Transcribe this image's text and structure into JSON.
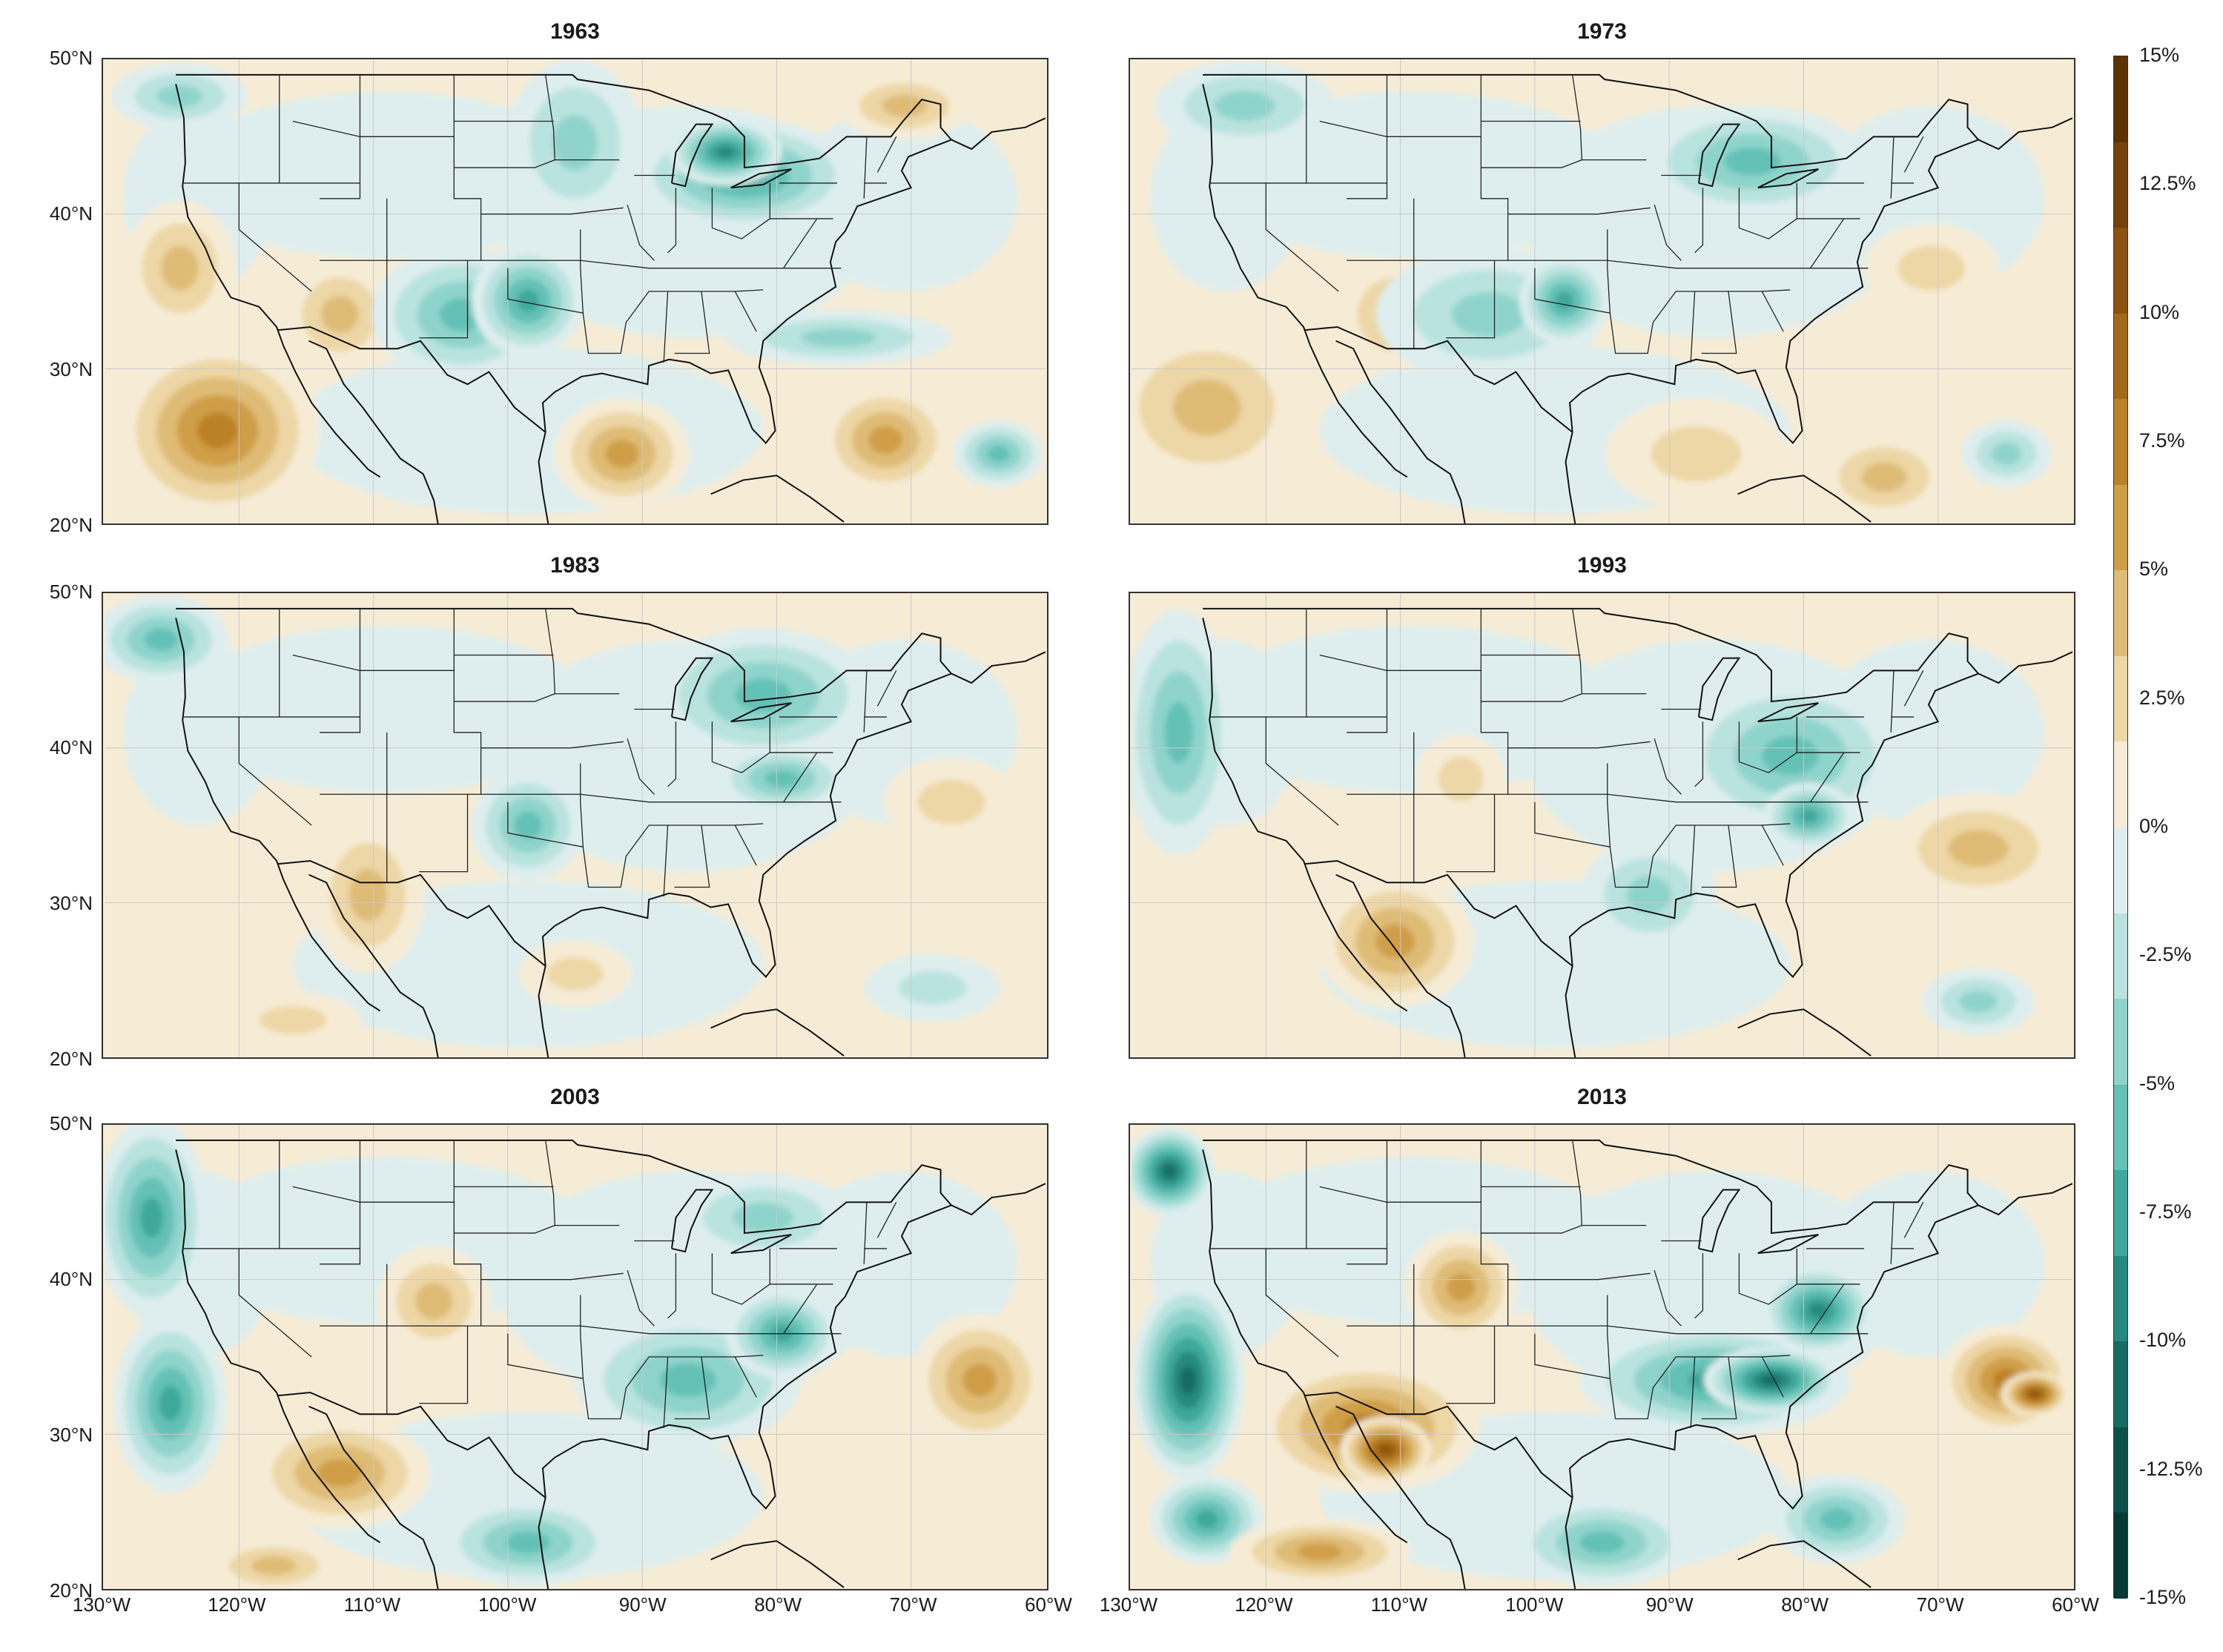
{
  "panels": [
    {
      "title": "1963",
      "palette": "mixed-1963"
    },
    {
      "title": "1973",
      "palette": "mixed-1973"
    },
    {
      "title": "1983",
      "palette": "mixed-1983"
    },
    {
      "title": "1993",
      "palette": "mixed-1993"
    },
    {
      "title": "2003",
      "palette": "mixed-2003"
    },
    {
      "title": "2013",
      "palette": "mixed-2013"
    }
  ],
  "lat_labels": [
    "50°N",
    "40°N",
    "30°N",
    "20°N"
  ],
  "lon_labels": [
    "130°W",
    "120°W",
    "110°W",
    "100°W",
    "90°W",
    "80°W",
    "70°W",
    "60°W"
  ],
  "colorbar": {
    "ticks": [
      "15%",
      "12.5%",
      "10%",
      "7.5%",
      "5%",
      "2.5%",
      "0%",
      "-2.5%",
      "-5%",
      "-7.5%",
      "-10%",
      "-12.5%",
      "-15%"
    ],
    "colors": [
      "#5c3203",
      "#744108",
      "#8c530f",
      "#a46818",
      "#bb8127",
      "#cf9e47",
      "#dfbc76",
      "#edd7a6",
      "#f6ecd6",
      "#deeeee",
      "#b9e3df",
      "#8fd4cc",
      "#63c1b5",
      "#3fa79b",
      "#26897e",
      "#146c63",
      "#08524b",
      "#033b35"
    ]
  }
}
